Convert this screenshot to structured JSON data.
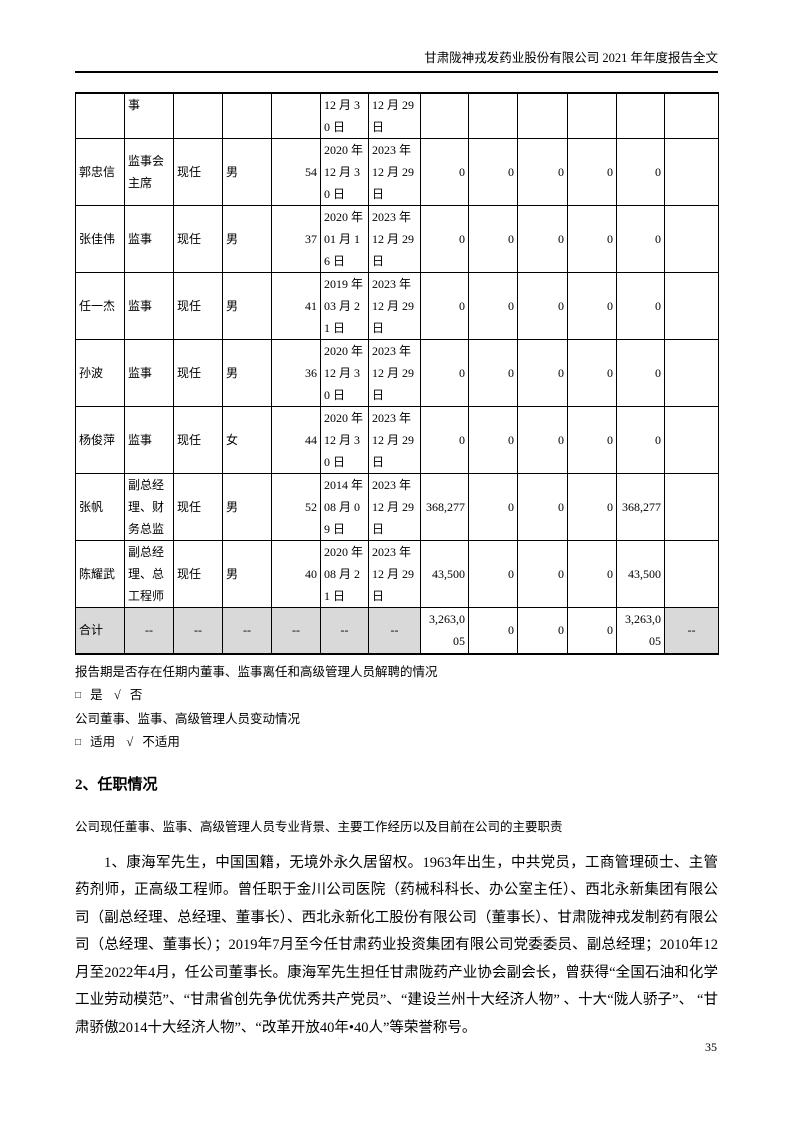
{
  "page": {
    "header_title": "甘肃陇神戎发药业股份有限公司 2021 年年度报告全文",
    "page_number": "35",
    "colors": {
      "table_shading": "#d9d9d9",
      "border": "#000000"
    }
  },
  "table": {
    "rows": [
      [
        "",
        "事",
        "",
        "",
        "",
        "12 月 30 日",
        "12 月 29 日",
        "",
        "",
        "",
        "",
        "",
        ""
      ],
      [
        "郭忠信",
        "监事会主席",
        "现任",
        "男",
        "54",
        "2020 年 12 月 30 日",
        "2023 年 12 月 29 日",
        "0",
        "0",
        "0",
        "0",
        "0",
        ""
      ],
      [
        "张佳伟",
        "监事",
        "现任",
        "男",
        "37",
        "2020 年 01 月 16 日",
        "2023 年 12 月 29 日",
        "0",
        "0",
        "0",
        "0",
        "0",
        ""
      ],
      [
        "任一杰",
        "监事",
        "现任",
        "男",
        "41",
        "2019 年 03 月 21 日",
        "2023 年 12 月 29 日",
        "0",
        "0",
        "0",
        "0",
        "0",
        ""
      ],
      [
        "孙波",
        "监事",
        "现任",
        "男",
        "36",
        "2020 年 12 月 30 日",
        "2023 年 12 月 29 日",
        "0",
        "0",
        "0",
        "0",
        "0",
        ""
      ],
      [
        "杨俊萍",
        "监事",
        "现任",
        "女",
        "44",
        "2020 年 12 月 30 日",
        "2023 年 12 月 29 日",
        "0",
        "0",
        "0",
        "0",
        "0",
        ""
      ],
      [
        "张帆",
        "副总经理、财务总监",
        "现任",
        "男",
        "52",
        "2014 年 08 月 09 日",
        "2023 年 12 月 29 日",
        "368,277",
        "0",
        "0",
        "0",
        "368,277",
        ""
      ],
      [
        "陈耀武",
        "副总经理、总工程师",
        "现任",
        "男",
        "40",
        "2020 年 08 月 21 日",
        "2023 年 12 月 29 日",
        "43,500",
        "0",
        "0",
        "0",
        "43,500",
        ""
      ],
      [
        "合计",
        "--",
        "--",
        "--",
        "--",
        "--",
        "--",
        "3,263,005",
        "0",
        "0",
        "0",
        "3,263,005",
        "--"
      ]
    ]
  },
  "notes": {
    "departure_question": "报告期是否存在任期内董事、监事离任和高级管理人员解聘的情况",
    "departure_answer": {
      "box": "□",
      "yes": "是",
      "check": "√",
      "no": "否"
    },
    "change_question": "公司董事、监事、高级管理人员变动情况",
    "change_answer": {
      "box": "□",
      "applicable": "适用",
      "check": "√",
      "not_applicable": "不适用"
    }
  },
  "section": {
    "heading": "2、任职情况",
    "intro": "公司现任董事、监事、高级管理人员专业背景、主要工作经历以及目前在公司的主要职责",
    "bio_paragraph": "1、康海军先生，中国国籍，无境外永久居留权。1963年出生，中共党员，工商管理硕士、主管药剂师，正高级工程师。曾任职于金川公司医院（药械科科长、办公室主任）、西北永新集团有限公司（副总经理、总经理、董事长）、西北永新化工股份有限公司（董事长）、甘肃陇神戎发制药有限公司（总经理、董事长）；2019年7月至今任甘肃药业投资集团有限公司党委委员、副总经理；2010年12月至2022年4月，任公司董事长。康海军先生担任甘肃陇药产业协会副会长，曾获得“全国石油和化学工业劳动模范”、“甘肃省创先争优优秀共产党员”、“建设兰州十大经济人物” 、十大“陇人骄子”、 “甘肃骄傲2014十大经济人物”、“改革开放40年•40人”等荣誉称号。"
  }
}
